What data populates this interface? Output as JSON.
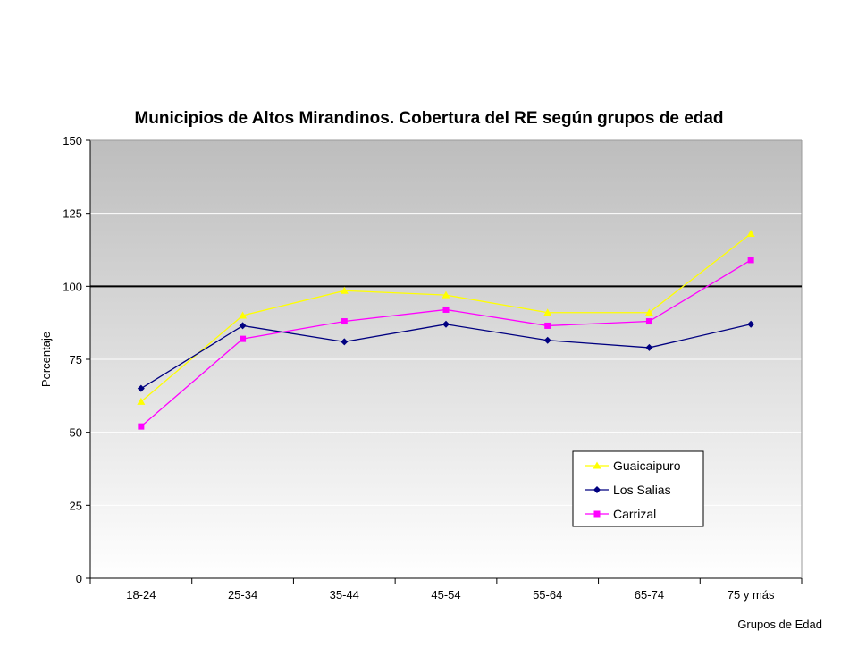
{
  "chart_data": {
    "type": "line",
    "title": "Municipios de Altos Mirandinos. Cobertura del RE según grupos de edad",
    "xlabel": "Grupos de Edad",
    "ylabel": "Porcentaje",
    "categories": [
      "18-24",
      "25-34",
      "35-44",
      "45-54",
      "55-64",
      "65-74",
      "75 y más"
    ],
    "ylim": [
      0,
      150
    ],
    "yticks": [
      "0",
      "25",
      "50",
      "75",
      "100",
      "125",
      "150"
    ],
    "reference_line": 100,
    "grid": true,
    "legend_position": "bottom-right",
    "series": [
      {
        "name": "Guaicaipuro",
        "color": "#ffff00",
        "marker": "triangle",
        "values": [
          60.5,
          90,
          98.5,
          97,
          91,
          91,
          118
        ]
      },
      {
        "name": "Los Salias",
        "color": "#000080",
        "marker": "diamond",
        "values": [
          65,
          86.5,
          81,
          87,
          81.5,
          79,
          87
        ]
      },
      {
        "name": "Carrizal",
        "color": "#ff00ff",
        "marker": "square",
        "values": [
          52,
          82,
          88,
          92,
          86.5,
          88,
          109
        ]
      }
    ]
  }
}
